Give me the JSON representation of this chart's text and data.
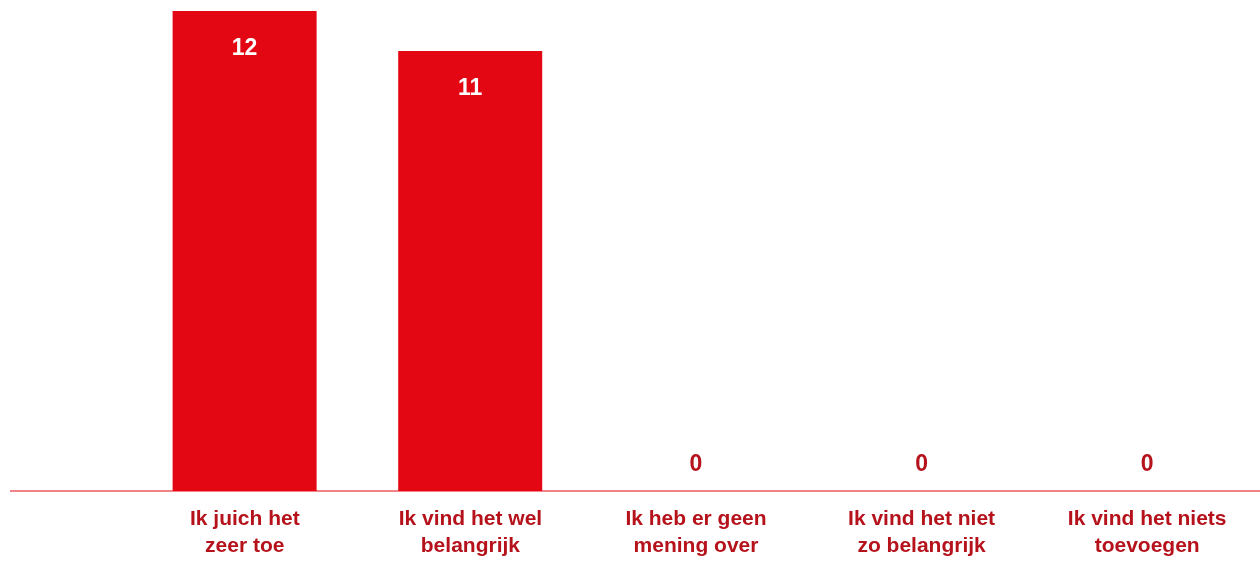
{
  "chart_data": {
    "type": "bar",
    "categories": [
      "Ik juich het\nzeer toe",
      "Ik vind het wel\nbelangrijk",
      "Ik heb er geen\nmening over",
      "Ik vind het niet\nzo belangrijk",
      "Ik vind het niets\ntoevoegen"
    ],
    "values": [
      12,
      11,
      0,
      0,
      0
    ],
    "color": "#e30613",
    "data_labels": true,
    "grid": false,
    "legend": false
  }
}
